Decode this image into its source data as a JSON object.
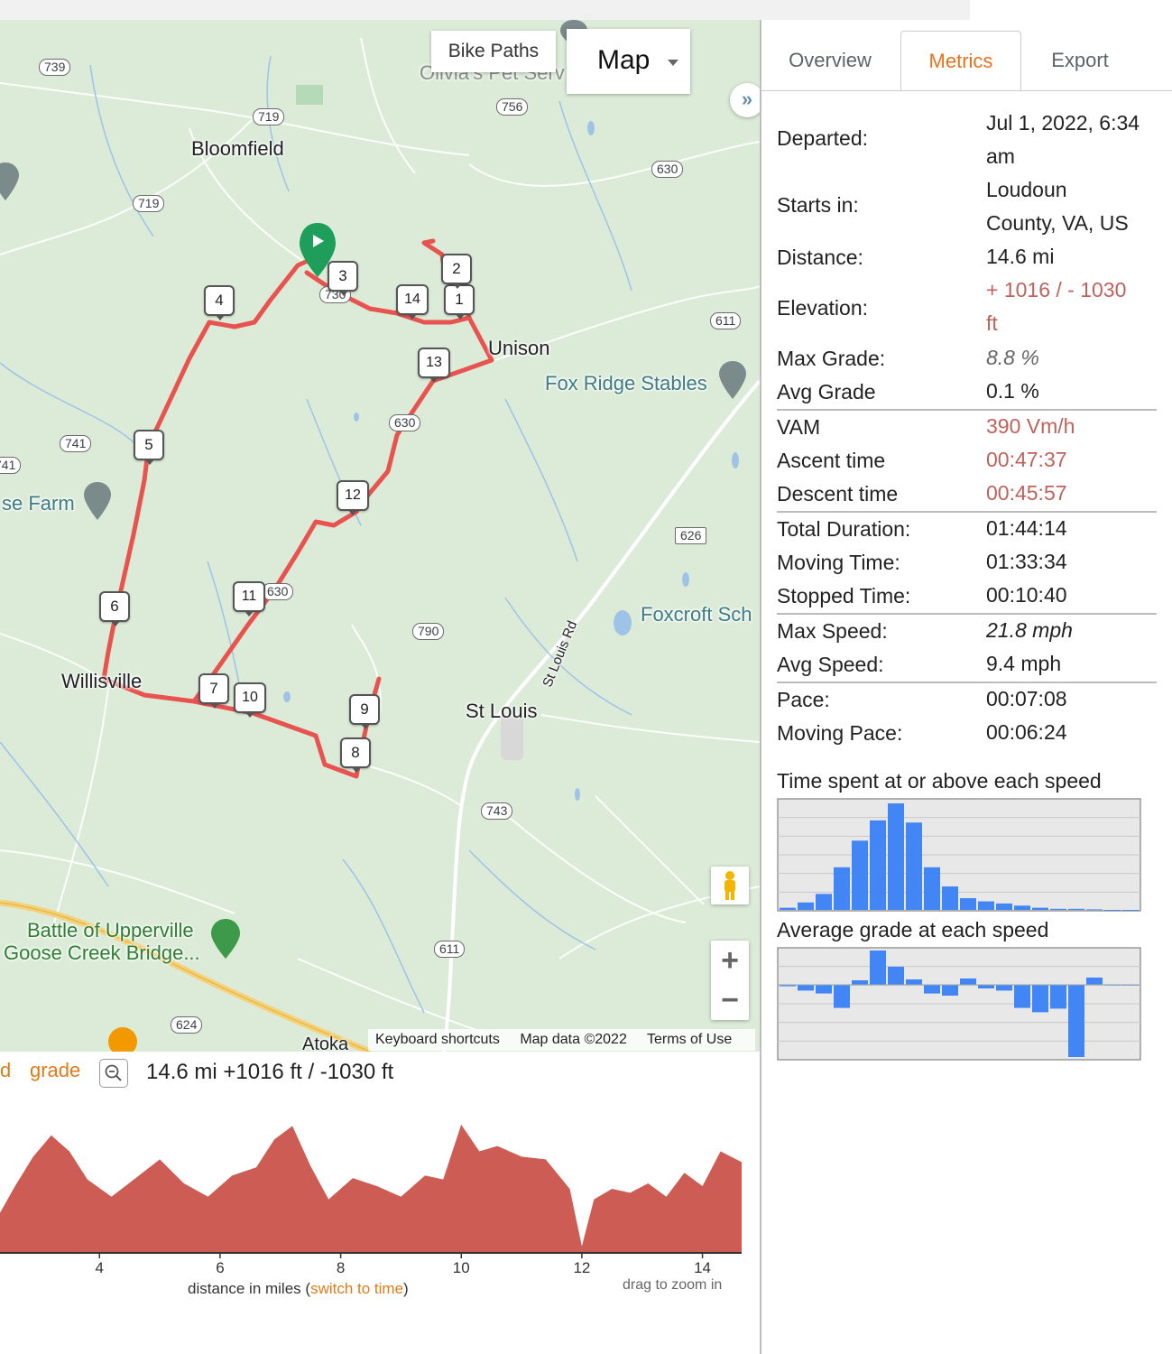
{
  "map": {
    "bike_paths_label": "Bike Paths",
    "map_type_label": "Map",
    "collapse_glyph": "»",
    "zoom_in": "+",
    "zoom_out": "−",
    "attribution": {
      "keyboard": "Keyboard shortcuts",
      "data": "Map data ©2022",
      "terms": "Terms of Use"
    },
    "places": [
      "Bloomfield",
      "Unison",
      "Fox Ridge Stables",
      "Willisville",
      "St Louis",
      "Foxcroft Sch",
      "se Farm",
      "Battle of Upperville",
      "Goose Creek Bridge...",
      "Atoka",
      "St Louis Rd",
      "Olivia's Pet Serv"
    ],
    "road_shields": [
      "739",
      "719",
      "719",
      "756",
      "630",
      "611",
      "741",
      "741",
      "630",
      "626",
      "630",
      "790",
      "743",
      "611",
      "624",
      "730"
    ],
    "markers": [
      "1",
      "2",
      "3",
      "4",
      "5",
      "6",
      "7",
      "8",
      "9",
      "10",
      "11",
      "12",
      "13",
      "14"
    ],
    "route_color": "#e8524f"
  },
  "elevation": {
    "link_partial": "d",
    "link_grade": "grade",
    "summary": "14.6 mi +1016 ft / -1030 ft",
    "axis_caption_prefix": "distance in miles (",
    "axis_caption_link": "switch to time",
    "axis_caption_suffix": ")",
    "drag_hint": "drag to zoom in",
    "fill_color": "#cd5c55"
  },
  "chart_data": [
    {
      "type": "area",
      "title": "",
      "xlabel": "distance in miles",
      "ylabel": "",
      "x_ticks": [
        4,
        6,
        8,
        10,
        12,
        14
      ],
      "xlim": [
        2.35,
        14.65
      ],
      "x": [
        2.35,
        2.6,
        2.9,
        3.2,
        3.5,
        3.8,
        4.2,
        4.6,
        5.0,
        5.4,
        5.8,
        6.2,
        6.6,
        6.9,
        7.2,
        7.5,
        7.8,
        8.2,
        8.6,
        9.0,
        9.4,
        9.7,
        10.0,
        10.3,
        10.6,
        11.0,
        11.4,
        11.8,
        12.0,
        12.2,
        12.5,
        12.8,
        13.1,
        13.4,
        13.7,
        14.0,
        14.3,
        14.65
      ],
      "y_relative": [
        0.3,
        0.5,
        0.72,
        0.88,
        0.76,
        0.55,
        0.42,
        0.56,
        0.7,
        0.52,
        0.42,
        0.58,
        0.64,
        0.85,
        0.95,
        0.65,
        0.4,
        0.56,
        0.5,
        0.42,
        0.58,
        0.55,
        0.96,
        0.76,
        0.8,
        0.72,
        0.7,
        0.48,
        0.05,
        0.4,
        0.48,
        0.45,
        0.52,
        0.42,
        0.6,
        0.5,
        0.76,
        0.68
      ]
    },
    {
      "type": "bar",
      "title": "Time spent at or above each speed",
      "xlabel": "",
      "ylabel": "",
      "values": [
        0.02,
        0.07,
        0.15,
        0.4,
        0.65,
        0.84,
        1.0,
        0.82,
        0.4,
        0.22,
        0.11,
        0.08,
        0.06,
        0.04,
        0.02,
        0.01,
        0.01,
        0.005,
        0.0,
        0.0
      ]
    },
    {
      "type": "bar",
      "title": "Average grade at each speed",
      "xlabel": "",
      "ylabel": "",
      "zero_baseline": true,
      "values": [
        -0.02,
        -0.08,
        -0.12,
        -0.32,
        0.05,
        0.38,
        0.2,
        0.06,
        -0.12,
        -0.15,
        0.07,
        -0.05,
        -0.08,
        -0.32,
        -0.38,
        -0.33,
        -1.0,
        0.08,
        -0.01,
        0.0
      ]
    }
  ],
  "panel": {
    "tabs": [
      "Overview",
      "Metrics",
      "Export"
    ],
    "active_tab": "Metrics",
    "metrics": {
      "departed_k": "Departed:",
      "departed_v1": "Jul 1, 2022, 6:34",
      "departed_v2": "am",
      "starts_k": "Starts in:",
      "starts_v1": "Loudoun",
      "starts_v2": "County, VA, US",
      "distance_k": "Distance:",
      "distance_v": "14.6 mi",
      "elevation_k": "Elevation:",
      "elevation_v1": "+ 1016 / - 1030",
      "elevation_v2": "ft",
      "maxgrade_k": "Max Grade:",
      "maxgrade_v": "8.8 %",
      "avggrade_k": "Avg Grade",
      "avggrade_v": "0.1 %",
      "vam_k": "VAM",
      "vam_v": "390 Vm/h",
      "ascent_k": "Ascent time",
      "ascent_v": "00:47:37",
      "descent_k": "Descent time",
      "descent_v": "00:45:57",
      "totaldur_k": "Total Duration:",
      "totaldur_v": "01:44:14",
      "moving_k": "Moving Time:",
      "moving_v": "01:33:34",
      "stopped_k": "Stopped Time:",
      "stopped_v": "00:10:40",
      "maxspeed_k": "Max Speed:",
      "maxspeed_v": "21.8 mph",
      "avgspeed_k": "Avg Speed:",
      "avgspeed_v": "9.4 mph",
      "pace_k": "Pace:",
      "pace_v": "00:07:08",
      "movingpace_k": "Moving Pace:",
      "movingpace_v": "00:06:24"
    },
    "speed_chart_title": "Time spent at or above each speed",
    "grade_chart_title": "Average grade at each speed",
    "bar_color": "#4285f4",
    "accent": "#e8711c",
    "red_value_color": "#c0625c"
  }
}
